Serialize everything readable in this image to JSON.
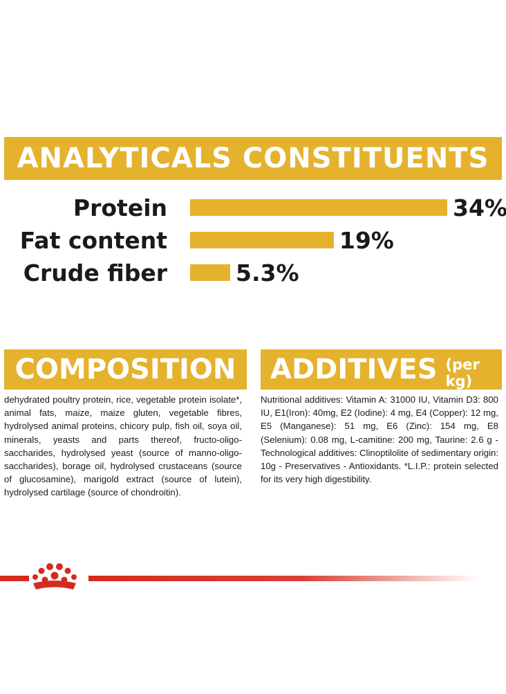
{
  "chart_data": {
    "type": "bar",
    "orientation": "horizontal",
    "title": "ANALYTICALS CONSTITUENTS",
    "categories": [
      "Protein",
      "Fat content",
      "Crude fiber"
    ],
    "values": [
      34,
      19,
      5.3
    ],
    "value_labels": [
      "34%",
      "19%",
      "5.3%"
    ],
    "xlim": [
      0,
      34
    ],
    "grid": false,
    "legend": "none",
    "bar_color": "#e5b22e"
  },
  "composition": {
    "heading": "COMPOSITION",
    "text": "dehydrated poultry protein, rice, vegetable protein isolate*, animal fats, maize, maize gluten, vegetable fibres, hydrolysed animal proteins, chicory pulp, fish oil, soya oil, minerals, yeasts and parts thereof, fructo-oligo-saccharides, hydrolysed yeast (source of manno-oligo-saccharides), borage oil, hydrolysed crustaceans (source of glucosamine), marigold extract (source of lutein), hydrolysed cartilage (source of chondroitin)."
  },
  "additives": {
    "heading": "ADDITIVES",
    "subheading": "(per kg)",
    "text": "Nutritional additives: Vitamin A: 31000 IU, Vitamin D3: 800 IU, E1(Iron): 40mg, E2 (Iodine): 4 mg, E4 (Copper): 12 mg, E5 (Manganese): 51 mg, E6 (Zinc): 154 mg, E8 (Selenium): 0.08 mg, L-camitine: 200 mg, Taurine: 2.6 g - Technological additives: Clinoptilolite of sedimentary origin: 10g - Preservatives - Antioxidants. *L.I.P.: protein selected for its very high digestibility."
  },
  "colors": {
    "accent": "#e5b22e",
    "brand_red": "#d52b1e",
    "text": "#1a1a1a"
  },
  "brand": {
    "icon": "crown-icon"
  }
}
